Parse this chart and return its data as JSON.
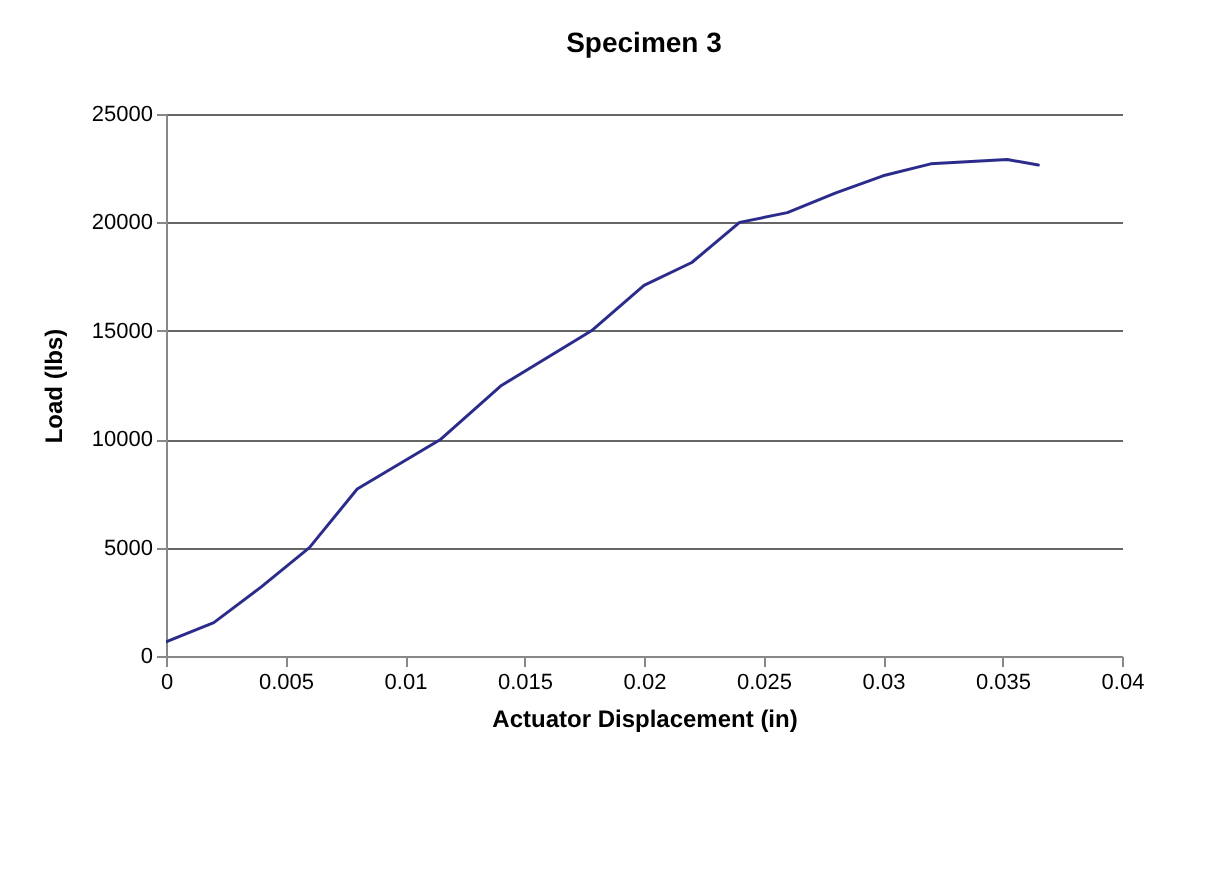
{
  "chart_data": {
    "type": "line",
    "title": "Specimen 3",
    "xlabel": "Actuator Displacement (in)",
    "ylabel": "Load (lbs)",
    "x": [
      0,
      0.002,
      0.004,
      0.006,
      0.008,
      0.0115,
      0.014,
      0.0178,
      0.02,
      0.022,
      0.024,
      0.026,
      0.028,
      0.03,
      0.032,
      0.0335,
      0.0352,
      0.0365
    ],
    "series": [
      {
        "color": "#2b2b8c",
        "values": [
          650,
          1540,
          3200,
          5000,
          7700,
          10000,
          12450,
          15000,
          17100,
          18150,
          20000,
          20450,
          21350,
          22150,
          22700,
          22800,
          22900,
          22650
        ]
      }
    ],
    "xlim": [
      0,
      0.04
    ],
    "xticks": [
      0,
      0.005,
      0.01,
      0.015,
      0.02,
      0.025,
      0.03,
      0.035,
      0.04
    ],
    "ylim": [
      0,
      25000
    ],
    "yticks": [
      0,
      5000,
      10000,
      15000,
      20000,
      25000
    ],
    "grid": "y",
    "marker": "none",
    "line_style": "solid"
  }
}
